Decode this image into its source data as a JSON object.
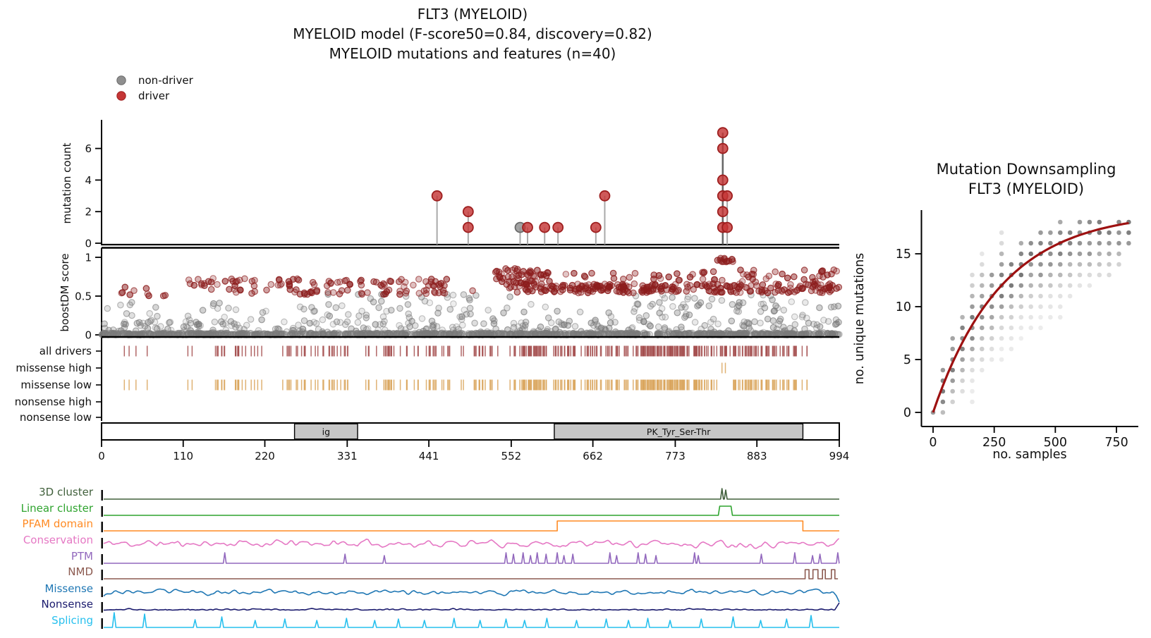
{
  "title": {
    "line1": "FLT3 (MYELOID)",
    "line2": "MYELOID model (F-score50=0.84, discovery=0.82)",
    "line3": "MYELOID mutations and features (n=40)"
  },
  "legend": [
    {
      "label": "non-driver",
      "color": "#8f8f8f",
      "edge": "#6a6a6a"
    },
    {
      "label": "driver",
      "color": "#c53636",
      "edge": "#9e1f1f"
    }
  ],
  "chart_data": {
    "lollipop": {
      "type": "scatter",
      "ylabel": "mutation count",
      "yticks": [
        0,
        2,
        4,
        6
      ],
      "xlim": [
        0,
        994
      ],
      "stems": [
        {
          "pos": 452,
          "mutations": [
            {
              "count": 3,
              "driver": true
            }
          ]
        },
        {
          "pos": 494,
          "mutations": [
            {
              "count": 2,
              "driver": true
            },
            {
              "count": 1,
              "driver": true
            }
          ]
        },
        {
          "pos": 564,
          "mutations": [
            {
              "count": 1,
              "driver": false
            }
          ]
        },
        {
          "pos": 574,
          "mutations": [
            {
              "count": 1,
              "driver": true
            }
          ]
        },
        {
          "pos": 597,
          "mutations": [
            {
              "count": 1,
              "driver": true
            }
          ]
        },
        {
          "pos": 615,
          "mutations": [
            {
              "count": 1,
              "driver": true
            }
          ]
        },
        {
          "pos": 666,
          "mutations": [
            {
              "count": 1,
              "driver": true
            }
          ]
        },
        {
          "pos": 678,
          "mutations": [
            {
              "count": 3,
              "driver": true
            }
          ]
        },
        {
          "pos": 837,
          "mutations": [
            {
              "count": 7,
              "driver": true
            },
            {
              "count": 6,
              "driver": true
            },
            {
              "count": 4,
              "driver": true
            },
            {
              "count": 3,
              "driver": true
            },
            {
              "count": 2,
              "driver": true
            },
            {
              "count": 1,
              "driver": true
            }
          ]
        },
        {
          "pos": 843,
          "mutations": [
            {
              "count": 3,
              "driver": true
            },
            {
              "count": 1,
              "driver": true
            }
          ]
        }
      ],
      "colors": {
        "driver": "#c53636",
        "driver_edge": "#9e1f1f",
        "non_driver": "#8f8f8f",
        "non_driver_edge": "#6a6a6a",
        "stem": "#a0a0a0",
        "stem_dense": "#555555"
      }
    },
    "score": {
      "type": "scatter",
      "ylabel": "boostDM score",
      "yticks": [
        0,
        0.5,
        1
      ],
      "xlim": [
        0,
        994
      ],
      "colors": {
        "driver": "#8c1d1d",
        "passenger": "#7b7b7b"
      },
      "bands": [
        {
          "kind": "passenger",
          "x": [
            0,
            994
          ],
          "score": [
            0.0,
            0.025
          ],
          "n": 650
        },
        {
          "kind": "passenger",
          "x": [
            0,
            994
          ],
          "score": [
            0.0,
            0.01
          ],
          "n": 350
        },
        {
          "kind": "passenger",
          "x": [
            0,
            994
          ],
          "score": [
            0.03,
            0.18
          ],
          "n": 230
        },
        {
          "kind": "passenger",
          "x": [
            0,
            994
          ],
          "score": [
            0.18,
            0.42
          ],
          "n": 120
        },
        {
          "kind": "passenger",
          "x": [
            300,
            560
          ],
          "score": [
            0.42,
            0.55
          ],
          "n": 18
        },
        {
          "kind": "passenger",
          "x": [
            700,
            994
          ],
          "score": [
            0.35,
            0.52
          ],
          "n": 30
        },
        {
          "kind": "driver",
          "x": [
            18,
            95
          ],
          "score": [
            0.5,
            0.62
          ],
          "n": 10
        },
        {
          "kind": "driver",
          "x": [
            110,
            335
          ],
          "score": [
            0.63,
            0.73
          ],
          "n": 48
        },
        {
          "kind": "driver",
          "x": [
            140,
            335
          ],
          "score": [
            0.52,
            0.59
          ],
          "n": 26
        },
        {
          "kind": "driver",
          "x": [
            348,
            465
          ],
          "score": [
            0.62,
            0.72
          ],
          "n": 30
        },
        {
          "kind": "driver",
          "x": [
            350,
            500
          ],
          "score": [
            0.52,
            0.58
          ],
          "n": 22
        },
        {
          "kind": "driver",
          "x": [
            530,
            605
          ],
          "score": [
            0.72,
            0.86
          ],
          "n": 40
        },
        {
          "kind": "driver",
          "x": [
            535,
            610
          ],
          "score": [
            0.6,
            0.7
          ],
          "n": 25
        },
        {
          "kind": "driver",
          "x": [
            560,
            994
          ],
          "score": [
            0.54,
            0.66
          ],
          "n": 240
        },
        {
          "kind": "driver",
          "x": [
            615,
            840
          ],
          "score": [
            0.7,
            0.82
          ],
          "n": 28
        },
        {
          "kind": "driver",
          "x": [
            828,
            852
          ],
          "score": [
            0.93,
            0.99
          ],
          "n": 14
        },
        {
          "kind": "driver",
          "x": [
            855,
            994
          ],
          "score": [
            0.68,
            0.84
          ],
          "n": 30
        }
      ]
    },
    "tracks": {
      "rows": [
        {
          "label": "all drivers",
          "color": "#a34c4c"
        },
        {
          "label": "missense high",
          "color": "#d9a45c"
        },
        {
          "label": "missense low",
          "color": "#d9a45c"
        },
        {
          "label": "nonsense high",
          "color": "#d9a45c"
        },
        {
          "label": "nonsense low",
          "color": "#d9a45c"
        }
      ],
      "all_driver_segments": [
        [
          24,
          48,
          3
        ],
        [
          60,
          63,
          1
        ],
        [
          112,
          127,
          2
        ],
        [
          147,
          172,
          7
        ],
        [
          176,
          216,
          14
        ],
        [
          241,
          266,
          7
        ],
        [
          268,
          332,
          20
        ],
        [
          351,
          397,
          15
        ],
        [
          401,
          462,
          18
        ],
        [
          466,
          534,
          20
        ],
        [
          543,
          560,
          4
        ],
        [
          562,
          700,
          80
        ],
        [
          701,
          830,
          100
        ],
        [
          831,
          850,
          12
        ],
        [
          851,
          930,
          45
        ],
        [
          932,
          952,
          8
        ]
      ],
      "hotspot_gap": [
        831,
        850
      ],
      "missense_high_positions": [
        836,
        840.5
      ]
    },
    "domains": {
      "boxes": [
        {
          "name": "ig",
          "start": 260,
          "end": 345
        },
        {
          "name": "PK_Tyr_Ser-Thr",
          "start": 610,
          "end": 945
        }
      ],
      "xticks": [
        0,
        110,
        220,
        331,
        441,
        552,
        662,
        773,
        883,
        994
      ],
      "fill": "#c6c6c6"
    },
    "features": {
      "rows": [
        {
          "label": "3D cluster",
          "color": "#41603c",
          "type": "spikes",
          "spikes": [
            [
              836,
              15
            ],
            [
              841,
              13
            ]
          ],
          "spike_width": 4
        },
        {
          "label": "Linear cluster",
          "color": "#2fa42f",
          "type": "pulse",
          "pulse": [
            831,
            850
          ],
          "height": 13
        },
        {
          "label": "PFAM domain",
          "color": "#ff8b24",
          "type": "step",
          "step": [
            614,
            945
          ],
          "height": 14
        },
        {
          "label": "Conservation",
          "color": "#e578c4",
          "type": "noise",
          "amp": 4.5,
          "seed": 11
        },
        {
          "label": "PTM",
          "color": "#9268bd",
          "type": "spikes",
          "spikes": [
            [
              166,
              15
            ],
            [
              328,
              13
            ],
            [
              381,
              11
            ],
            [
              545,
              15
            ],
            [
              555,
              13
            ],
            [
              568,
              15
            ],
            [
              578,
              11
            ],
            [
              587,
              15
            ],
            [
              599,
              13
            ],
            [
              614,
              15
            ],
            [
              623,
              11
            ],
            [
              635,
              13
            ],
            [
              685,
              15
            ],
            [
              694,
              11
            ],
            [
              723,
              15
            ],
            [
              733,
              13
            ],
            [
              747,
              11
            ],
            [
              799,
              15
            ],
            [
              804,
              11
            ],
            [
              889,
              13
            ],
            [
              934,
              15
            ],
            [
              958,
              11
            ],
            [
              968,
              13
            ],
            [
              992,
              15
            ]
          ],
          "spike_width": 4
        },
        {
          "label": "NMD",
          "color": "#8c5a50",
          "type": "burst",
          "burst": [
            948,
            994
          ],
          "height": 13
        },
        {
          "label": "Missense",
          "color": "#1f77b4",
          "type": "noise",
          "amp": 3.2,
          "seed": 23,
          "end": "dip"
        },
        {
          "label": "Nonsense",
          "color": "#1b1b6e",
          "type": "noise",
          "amp": 1.3,
          "seed": 37,
          "end": "rise"
        },
        {
          "label": "Splicing",
          "color": "#27c0ee",
          "type": "spikes",
          "spikes": [
            [
              17,
              21
            ],
            [
              58,
              19
            ],
            [
              126,
              11
            ],
            [
              162,
              15
            ],
            [
              207,
              10
            ],
            [
              247,
              12
            ],
            [
              290,
              10
            ],
            [
              330,
              13
            ],
            [
              368,
              10
            ],
            [
              400,
              12
            ],
            [
              435,
              10
            ],
            [
              475,
              13
            ],
            [
              510,
              10
            ],
            [
              545,
              12
            ],
            [
              570,
              10
            ],
            [
              600,
              13
            ],
            [
              640,
              10
            ],
            [
              680,
              12
            ],
            [
              710,
              10
            ],
            [
              736,
              13
            ],
            [
              766,
              10
            ],
            [
              808,
              12
            ],
            [
              851,
              15
            ],
            [
              888,
              10
            ],
            [
              923,
              12
            ],
            [
              956,
              17
            ]
          ],
          "spike_width": 5
        }
      ]
    },
    "downsampling": {
      "type": "scatter",
      "title_line1": "Mutation Downsampling",
      "title_line2": "FLT3 (MYELOID)",
      "xlabel": "no. samples",
      "ylabel": "no. unique mutations",
      "xticks": [
        0,
        250,
        500,
        750
      ],
      "yticks": [
        0,
        5,
        10,
        15
      ],
      "xlim": [
        0,
        800
      ],
      "ylim": [
        0,
        18
      ],
      "curve": {
        "color": "#9d1111",
        "saturation_max": 19,
        "rate": 280
      },
      "dot_color": "#555555",
      "dot_columns": [
        [
          0,
          0,
          0
        ],
        [
          40,
          0,
          4
        ],
        [
          80,
          1,
          7
        ],
        [
          120,
          2,
          9
        ],
        [
          160,
          1,
          13
        ],
        [
          200,
          4,
          15
        ],
        [
          240,
          5,
          13
        ],
        [
          280,
          5,
          17
        ],
        [
          320,
          6,
          14
        ],
        [
          360,
          7,
          16
        ],
        [
          400,
          8,
          16
        ],
        [
          440,
          8,
          17
        ],
        [
          480,
          9,
          17
        ],
        [
          520,
          9,
          18
        ],
        [
          560,
          11,
          17
        ],
        [
          600,
          12,
          18
        ],
        [
          640,
          12,
          18
        ],
        [
          680,
          13,
          18
        ],
        [
          720,
          13,
          17
        ],
        [
          760,
          14,
          18
        ],
        [
          800,
          16,
          18
        ]
      ]
    }
  }
}
